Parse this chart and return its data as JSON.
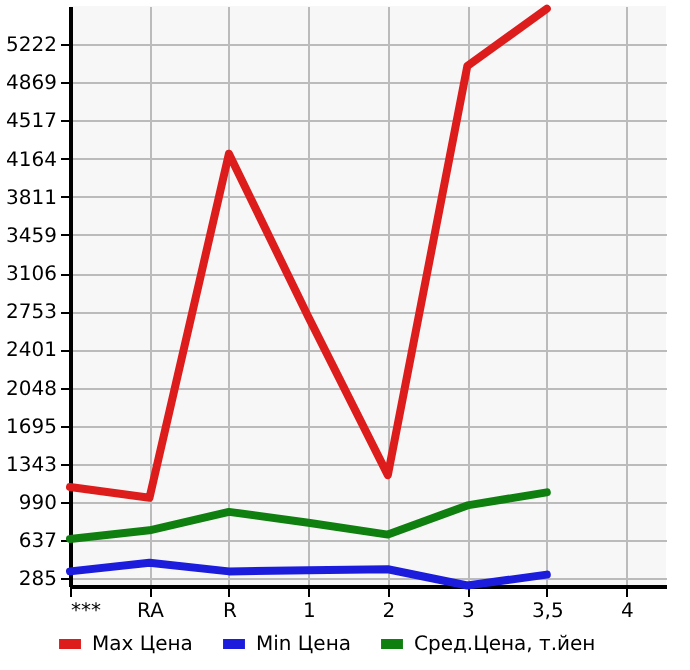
{
  "chart_data": {
    "type": "line",
    "categories": [
      "***",
      "RA",
      "R",
      "1",
      "2",
      "3",
      "3,5",
      "4"
    ],
    "series": [
      {
        "name": "Max Цена",
        "color": "#dd1c1c",
        "values": [
          1130,
          1030,
          4210,
          2700,
          1240,
          5020,
          5550,
          null
        ]
      },
      {
        "name": "Min Цена",
        "color": "#1c1cdd",
        "values": [
          350,
          430,
          350,
          360,
          370,
          220,
          320,
          null
        ]
      },
      {
        "name": "Сред.Цена, т.йен",
        "color": "#0f800f",
        "values": [
          650,
          730,
          900,
          800,
          690,
          960,
          1080,
          null
        ]
      }
    ],
    "ylim": [
      215,
      5575
    ],
    "yticks": [
      285,
      637,
      990,
      1343,
      1695,
      2048,
      2401,
      2753,
      3106,
      3459,
      3811,
      4164,
      4517,
      4869,
      5222
    ],
    "grid": true,
    "legend": "bottom",
    "marker": "none",
    "line_style": "solid"
  }
}
